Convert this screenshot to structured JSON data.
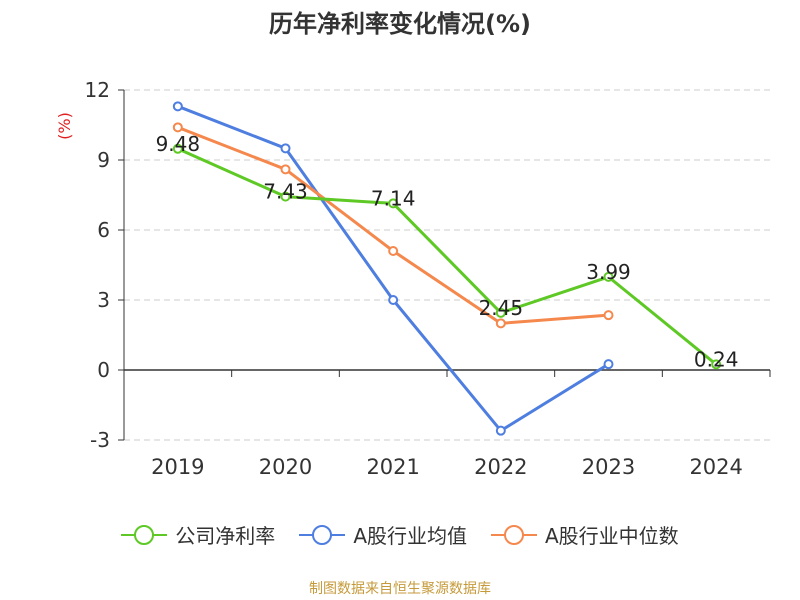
{
  "chart_title": "历年净利率变化情况(%)",
  "source_note": "制图数据来自恒生聚源数据库",
  "chart_data": {
    "type": "line",
    "title": "历年净利率变化情况(%)",
    "ylabel": "(%)",
    "xlabel": "",
    "categories": [
      "2019",
      "2020",
      "2021",
      "2022",
      "2023",
      "2024"
    ],
    "ylim": [
      -3,
      12
    ],
    "yticks": [
      12,
      9,
      6,
      3,
      0,
      -3
    ],
    "grid": true,
    "legend_position": "bottom",
    "series": [
      {
        "name": "公司净利率",
        "color": "#5ec925",
        "values": [
          9.48,
          7.43,
          7.14,
          2.45,
          3.99,
          0.24
        ],
        "labels": [
          "9.48",
          "7.43",
          "7.14",
          "2.45",
          "3.99",
          "0.24"
        ]
      },
      {
        "name": "A股行业均值",
        "color": "#4e7ee0",
        "values": [
          11.3,
          9.5,
          3.0,
          -2.6,
          0.25,
          null
        ]
      },
      {
        "name": "A股行业中位数",
        "color": "#f5884d",
        "values": [
          10.4,
          8.6,
          5.1,
          2.0,
          2.35,
          null
        ]
      }
    ]
  }
}
